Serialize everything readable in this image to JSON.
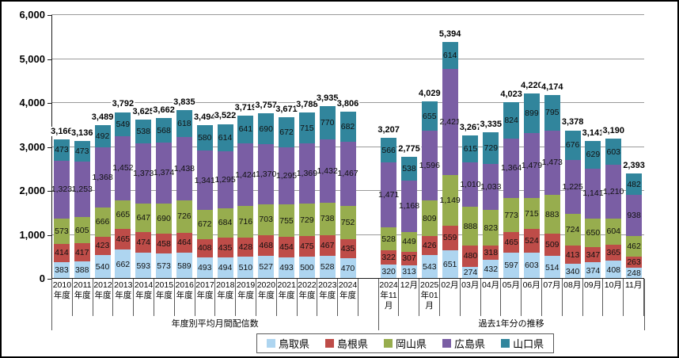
{
  "chart_data": {
    "type": "bar",
    "stacked": true,
    "title": "",
    "xlabel": "",
    "ylabel": "",
    "ylim": [
      0,
      6000
    ],
    "yticks": [
      0,
      1000,
      2000,
      3000,
      4000,
      5000,
      6000
    ],
    "ytick_labels": [
      "0",
      "1,000",
      "2,000",
      "3,000",
      "4,000",
      "5,000",
      "6,000"
    ],
    "grid": true,
    "legend_position": "bottom",
    "groups": [
      {
        "label": "年度別平均月間配信数",
        "categories": [
          "2010年度",
          "2011年度",
          "2012年度",
          "2013年度",
          "2014年度",
          "2015年度",
          "2016年度",
          "2017年度",
          "2018年度",
          "2019年度",
          "2020年度",
          "2021年度",
          "2022年度",
          "2023年度",
          "2024年度"
        ],
        "totals": [
          3166,
          3136,
          3489,
          3792,
          3625,
          3662,
          3835,
          3494,
          3522,
          3719,
          3757,
          3671,
          3788,
          3935,
          3806
        ],
        "spacer_cells": 1
      },
      {
        "label": "過去1年分の推移",
        "categories": [
          "2024年11月",
          "12月",
          "2025年01月",
          "02月",
          "03月",
          "04月",
          "05月",
          "06月",
          "07月",
          "08月",
          "09月",
          "10月",
          "11月"
        ],
        "totals": [
          3207,
          2775,
          4029,
          5394,
          3267,
          3335,
          4023,
          4220,
          4174,
          3378,
          3141,
          3190,
          2393
        ],
        "spacer_cells": 0
      }
    ],
    "series": [
      {
        "name": "鳥取県",
        "color": "#AED5F0",
        "values": [
          [
            383,
            388,
            540,
            662,
            593,
            573,
            589,
            493,
            494,
            510,
            527,
            493,
            500,
            528,
            470
          ],
          [
            320,
            313,
            543,
            651,
            274,
            432,
            597,
            603,
            514,
            340,
            374,
            408,
            248
          ]
        ]
      },
      {
        "name": "島根県",
        "color": "#BE4C48",
        "values": [
          [
            414,
            417,
            423,
            465,
            474,
            458,
            464,
            408,
            435,
            428,
            468,
            454,
            475,
            467,
            435
          ],
          [
            322,
            307,
            426,
            559,
            480,
            318,
            465,
            524,
            509,
            413,
            347,
            365,
            263
          ]
        ]
      },
      {
        "name": "岡山県",
        "color": "#97AD4E",
        "values": [
          [
            573,
            605,
            666,
            665,
            647,
            690,
            726,
            672,
            684,
            716,
            703,
            755,
            729,
            738,
            752
          ],
          [
            528,
            449,
            809,
            1149,
            888,
            823,
            773,
            715,
            883,
            724,
            650,
            604,
            462
          ]
        ]
      },
      {
        "name": "広島県",
        "color": "#7A5EA4",
        "values": [
          [
            1323,
            1253,
            1368,
            1452,
            1373,
            1374,
            1438,
            1341,
            1295,
            1424,
            1370,
            1295,
            1369,
            1432,
            1467
          ],
          [
            1471,
            1168,
            1596,
            2421,
            1010,
            1033,
            1364,
            1479,
            1473,
            1225,
            1141,
            1210,
            938
          ]
        ]
      },
      {
        "name": "山口県",
        "color": "#31859C",
        "values": [
          [
            473,
            473,
            492,
            549,
            538,
            568,
            618,
            580,
            614,
            641,
            690,
            672,
            715,
            770,
            682
          ],
          [
            566,
            538,
            655,
            614,
            615,
            729,
            824,
            899,
            795,
            676,
            629,
            603,
            482
          ]
        ]
      }
    ]
  }
}
